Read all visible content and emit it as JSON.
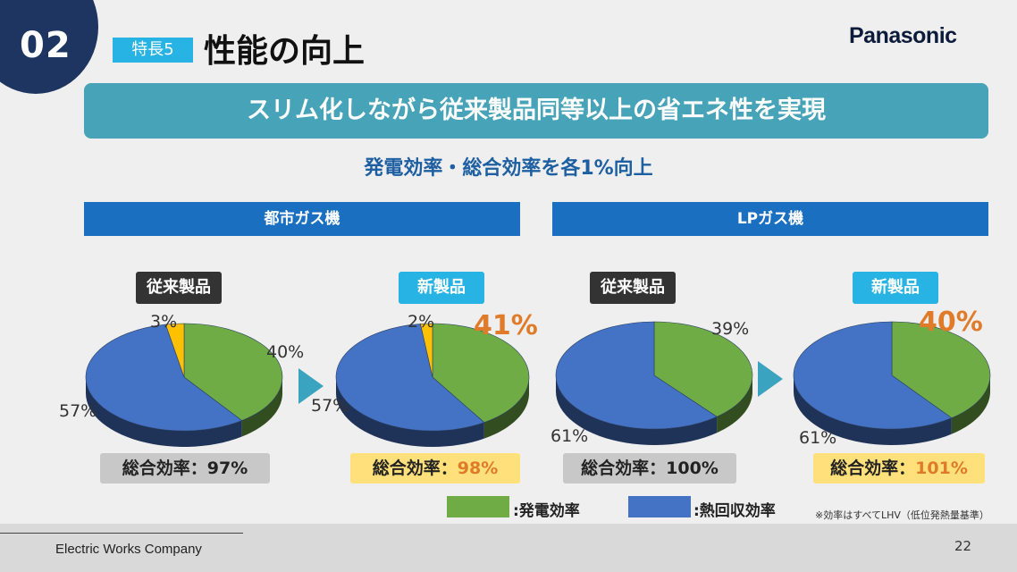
{
  "header": {
    "section_number": "02",
    "tag": "特長5",
    "title": "性能の向上",
    "logo": "Panasonic"
  },
  "banner": "スリム化しながら従来製品同等以上の省エネ性を実現",
  "subtitle": "発電効率・総合効率を各1%向上",
  "columns": [
    "都市ガス機",
    "LPガス機"
  ],
  "labels": {
    "old": "従来製品",
    "new": "新製品"
  },
  "efficiency_prefix": "総合効率：",
  "chart_data": [
    {
      "type": "pie",
      "group": "都市ガス機",
      "title": "従来製品",
      "slices": [
        {
          "name": ":発電効率",
          "value": 40
        },
        {
          "name": ":熱回収効率",
          "value": 57
        },
        {
          "name": "",
          "value": 3
        }
      ],
      "labels": {
        "green": "40%",
        "blue": "57%",
        "yellow": "3%",
        "highlight": ""
      },
      "total": "97%"
    },
    {
      "type": "pie",
      "group": "都市ガス機",
      "title": "新製品",
      "slices": [
        {
          "name": ":発電効率",
          "value": 41
        },
        {
          "name": ":熱回収効率",
          "value": 57
        },
        {
          "name": "",
          "value": 2
        }
      ],
      "labels": {
        "green": "",
        "blue": "57%",
        "yellow": "2%",
        "highlight": "41%"
      },
      "total": "98%"
    },
    {
      "type": "pie",
      "group": "LPガス機",
      "title": "従来製品",
      "slices": [
        {
          "name": ":発電効率",
          "value": 39
        },
        {
          "name": ":熱回収効率",
          "value": 61
        }
      ],
      "labels": {
        "green": "39%",
        "blue": "61%",
        "yellow": "",
        "highlight": ""
      },
      "total": "100%"
    },
    {
      "type": "pie",
      "group": "LPガス機",
      "title": "新製品",
      "slices": [
        {
          "name": ":発電効率",
          "value": 40
        },
        {
          "name": ":熱回収効率",
          "value": 61
        }
      ],
      "labels": {
        "green": "",
        "blue": "61%",
        "yellow": "",
        "highlight": "40%"
      },
      "total": "101%"
    }
  ],
  "legend": [
    {
      "label": ":発電効率",
      "color": "#6fac46"
    },
    {
      "label": ":熱回収効率",
      "color": "#4472c4"
    }
  ],
  "colors": {
    "green": "#6fac46",
    "blue": "#4472c4",
    "yellow": "#ffc000",
    "highlight": "#e07b2a"
  },
  "note": "※効率はすべてLHV（低位発熱量基準）",
  "footer": {
    "company": "Electric Works Company",
    "page": "22"
  }
}
